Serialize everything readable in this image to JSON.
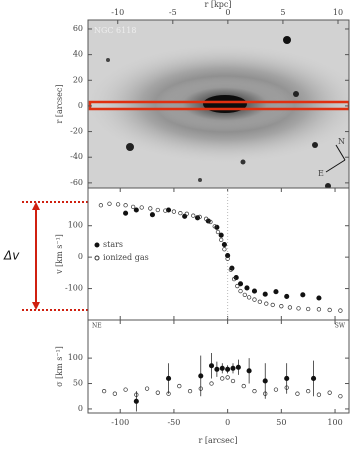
{
  "chart_data": [
    {
      "type": "image",
      "label": "NGC 6118",
      "xlabel": "r [kpc]",
      "ylabel": "r [arcsec]",
      "xlim": [
        -12.7,
        11
      ],
      "xticks": [
        -10,
        -5,
        0,
        5,
        10
      ],
      "ylim": [
        -64,
        67
      ],
      "yticks": [
        60,
        40,
        20,
        0,
        -20,
        -40,
        -60
      ],
      "compass": [
        "N",
        "E"
      ]
    },
    {
      "type": "scatter",
      "ylabel": "v [km s⁻¹]",
      "annotation": "Δv",
      "xlim": [
        -130,
        113
      ],
      "ylim": [
        -200,
        220
      ],
      "yticks": [
        100,
        0,
        -100
      ],
      "series": [
        {
          "name": "stars",
          "color": "#111111",
          "filled": true,
          "x": [
            -95,
            -85,
            -70,
            -55,
            -40,
            -28,
            -18,
            -10,
            -6,
            -3,
            0,
            4,
            8,
            12,
            18,
            25,
            35,
            45,
            55,
            70,
            85
          ],
          "values": [
            140,
            150,
            135,
            150,
            130,
            125,
            115,
            95,
            70,
            40,
            5,
            -35,
            -65,
            -85,
            -98,
            -108,
            -118,
            -110,
            -125,
            -120,
            -130
          ]
        },
        {
          "name": "ionized gas",
          "color": "#333333",
          "filled": false,
          "x": [
            -118,
            -110,
            -102,
            -95,
            -88,
            -80,
            -72,
            -65,
            -58,
            -50,
            -44,
            -38,
            -32,
            -26,
            -20,
            -16,
            -12,
            -9,
            -6,
            -3,
            0,
            3,
            6,
            9,
            12,
            16,
            20,
            25,
            30,
            36,
            42,
            50,
            58,
            66,
            75,
            85,
            95,
            105
          ],
          "values": [
            165,
            170,
            168,
            165,
            160,
            158,
            155,
            150,
            148,
            145,
            140,
            138,
            132,
            128,
            122,
            112,
            98,
            80,
            55,
            25,
            -5,
            -40,
            -70,
            -92,
            -108,
            -120,
            -128,
            -135,
            -142,
            -148,
            -152,
            -156,
            -160,
            -163,
            -165,
            -166,
            -168,
            -170
          ]
        }
      ]
    },
    {
      "type": "scatter",
      "ylabel": "σ [km s⁻¹]",
      "xlabel": "r [arcsec]",
      "left_label": "NE",
      "right_label": "SW",
      "xlim": [
        -130,
        113
      ],
      "xticks": [
        -100,
        -50,
        0,
        50,
        100
      ],
      "ylim": [
        -8,
        175
      ],
      "yticks": [
        0,
        50,
        100
      ],
      "series": [
        {
          "color": "#333333",
          "filled": false,
          "x": [
            -115,
            -105,
            -95,
            -85,
            -75,
            -65,
            -55,
            -45,
            -35,
            -25,
            -15,
            -5,
            0,
            5,
            15,
            25,
            35,
            45,
            55,
            65,
            75,
            85,
            95,
            105
          ],
          "values": [
            35,
            30,
            38,
            28,
            40,
            32,
            30,
            45,
            35,
            40,
            50,
            60,
            62,
            55,
            45,
            35,
            30,
            38,
            42,
            30,
            35,
            28,
            32,
            25
          ]
        },
        {
          "color": "#111111",
          "filled": true,
          "x": [
            -85,
            -55,
            -25,
            -15,
            -10,
            -5,
            0,
            5,
            10,
            20,
            35,
            55,
            80
          ],
          "values": [
            15,
            60,
            65,
            85,
            78,
            80,
            78,
            80,
            82,
            75,
            55,
            60,
            60
          ],
          "errors": [
            20,
            30,
            40,
            25,
            15,
            10,
            8,
            10,
            15,
            25,
            35,
            30,
            35
          ]
        }
      ]
    }
  ]
}
